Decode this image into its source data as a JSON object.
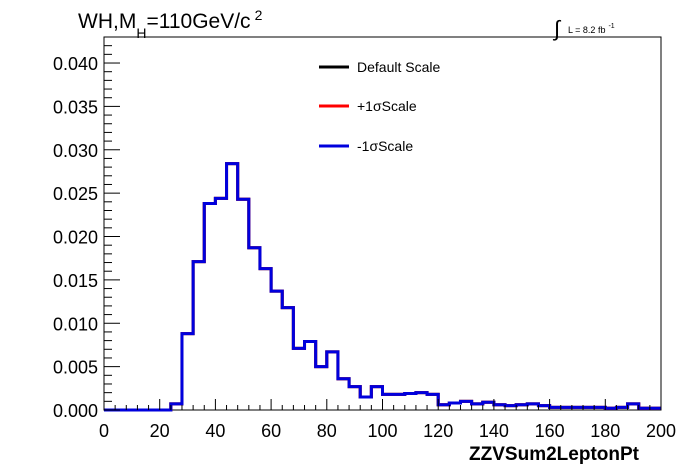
{
  "chart_data": {
    "type": "line",
    "title_parts": {
      "pre": "WH,M",
      "sub": "H",
      "mid": "=110GeV/c",
      "sup": "2"
    },
    "lumi_parts": {
      "integral": "∫",
      "text": "L = 8.2 fb",
      "sup": "-1"
    },
    "xlabel": "ZZVSum2LeptonPt",
    "ylabel": "",
    "xlim": [
      0,
      200
    ],
    "ylim": [
      0,
      0.043
    ],
    "x_ticks": [
      0,
      20,
      40,
      60,
      80,
      100,
      120,
      140,
      160,
      180,
      200
    ],
    "x_tick_labels": [
      "0",
      "20",
      "40",
      "60",
      "80",
      "100",
      "120",
      "140",
      "160",
      "180",
      "200"
    ],
    "y_ticks": [
      0,
      0.005,
      0.01,
      0.015,
      0.02,
      0.025,
      0.03,
      0.035,
      0.04
    ],
    "y_tick_labels": [
      "0.000",
      "0.005",
      "0.010",
      "0.015",
      "0.020",
      "0.025",
      "0.030",
      "0.035",
      "0.040"
    ],
    "grid": false,
    "legend_position": "top-right",
    "bin_edges": [
      0,
      4,
      8,
      12,
      16,
      20,
      24,
      28,
      32,
      36,
      40,
      44,
      48,
      52,
      56,
      60,
      64,
      68,
      72,
      76,
      80,
      84,
      88,
      92,
      96,
      100,
      104,
      108,
      112,
      116,
      120,
      124,
      128,
      132,
      136,
      140,
      144,
      148,
      152,
      156,
      160,
      164,
      168,
      172,
      176,
      180,
      184,
      188,
      192,
      196,
      200
    ],
    "series": [
      {
        "name": "Default Scale",
        "color": "#000000",
        "values": [
          0,
          0,
          0,
          0,
          0,
          0,
          0.0007,
          0.0088,
          0.0171,
          0.0238,
          0.0244,
          0.0284,
          0.0243,
          0.0187,
          0.0163,
          0.0137,
          0.0118,
          0.0071,
          0.0079,
          0.005,
          0.0067,
          0.0036,
          0.0027,
          0.0015,
          0.0027,
          0.0018,
          0.0018,
          0.0019,
          0.002,
          0.0018,
          0.0006,
          0.0008,
          0.001,
          0.0007,
          0.0009,
          0.0006,
          0.0005,
          0.0006,
          0.0007,
          0.0005,
          0.0003,
          0.0003,
          0.0003,
          0.0003,
          0.0003,
          0.0002,
          0.0003,
          0.0007,
          0.0002,
          0.0002
        ]
      },
      {
        "name": "+1σScale",
        "color": "#ff0000",
        "values": [
          0,
          0,
          0,
          0,
          0,
          0,
          0.0007,
          0.0088,
          0.0171,
          0.0238,
          0.0244,
          0.0284,
          0.0243,
          0.0187,
          0.0163,
          0.0137,
          0.0118,
          0.0071,
          0.0079,
          0.005,
          0.0067,
          0.0036,
          0.0027,
          0.0015,
          0.0027,
          0.0018,
          0.0018,
          0.0019,
          0.002,
          0.0018,
          0.0006,
          0.0008,
          0.001,
          0.0007,
          0.0009,
          0.0006,
          0.0005,
          0.0006,
          0.0007,
          0.0005,
          0.0003,
          0.0003,
          0.0003,
          0.0003,
          0.0003,
          0.0002,
          0.0003,
          0.0007,
          0.0002,
          0.0002
        ]
      },
      {
        "name": "-1σScale",
        "color": "#0000dd",
        "values": [
          0,
          0,
          0,
          0,
          0,
          0,
          0.0007,
          0.0088,
          0.0171,
          0.0238,
          0.0244,
          0.0284,
          0.0243,
          0.0187,
          0.0163,
          0.0137,
          0.0118,
          0.0071,
          0.0079,
          0.005,
          0.0067,
          0.0036,
          0.0027,
          0.0015,
          0.0027,
          0.0018,
          0.0018,
          0.0019,
          0.002,
          0.0018,
          0.0006,
          0.0008,
          0.001,
          0.0007,
          0.0009,
          0.0006,
          0.0005,
          0.0006,
          0.0007,
          0.0005,
          0.0003,
          0.0003,
          0.0003,
          0.0003,
          0.0003,
          0.0002,
          0.0003,
          0.0007,
          0.0002,
          0.0002
        ]
      }
    ]
  }
}
